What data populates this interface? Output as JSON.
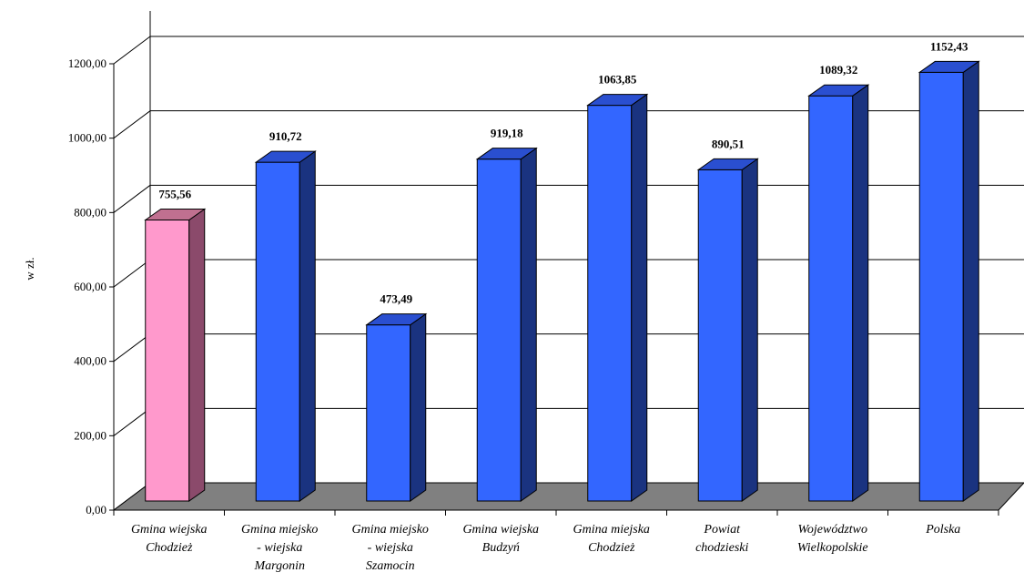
{
  "chart_data": {
    "type": "bar",
    "categories": [
      [
        "Gmina wiejska",
        "Chodzież"
      ],
      [
        "Gmina miejsko",
        "- wiejska",
        "Margonin"
      ],
      [
        "Gmina miejsko",
        "- wiejska",
        "Szamocin"
      ],
      [
        "Gmina wiejska",
        "Budzyń"
      ],
      [
        "Gmina miejska",
        "Chodzież"
      ],
      [
        "Powiat",
        "chodzieski"
      ],
      [
        "Województwo",
        "Wielkopolskie"
      ],
      [
        "Polska"
      ]
    ],
    "values": [
      755.56,
      910.72,
      473.49,
      919.18,
      1063.85,
      890.51,
      1089.32,
      1152.43
    ],
    "data_labels": [
      "755,56",
      "910,72",
      "473,49",
      "919,18",
      "1063,85",
      "890,51",
      "1089,32",
      "1152,43"
    ],
    "ylabel": "w zł.",
    "ylim": [
      0,
      1200
    ],
    "yticks": [
      0,
      200,
      400,
      600,
      800,
      1000,
      1200
    ],
    "ytick_labels": [
      "0,00",
      "200,00",
      "400,00",
      "600,00",
      "800,00",
      "1000,00",
      "1200,00"
    ],
    "grid": true,
    "three_d": true,
    "colors": {
      "highlight_front": "#FF99CC",
      "highlight_side": "#8B4A6B",
      "highlight_top": "#C07090",
      "bar_front": "#3366FF",
      "bar_side": "#1A3380",
      "bar_top": "#2A4FD0",
      "floor": "#808080"
    },
    "highlight_index": 0
  }
}
